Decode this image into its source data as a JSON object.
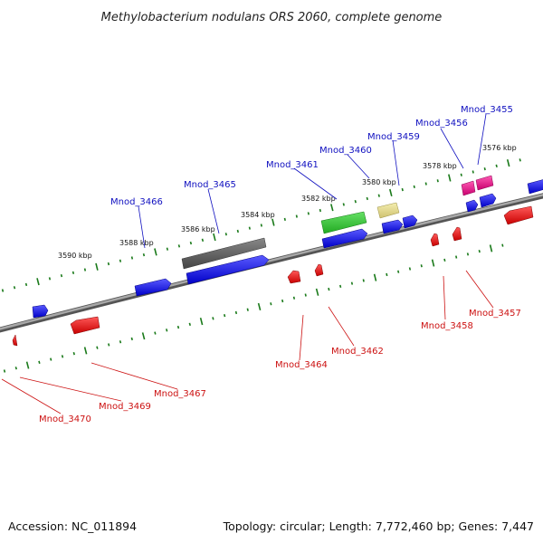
{
  "title": "Methylobacterium nodulans ORS 2060, complete genome",
  "footer": {
    "accession": "Accession: NC_011894",
    "summary": "Topology: circular; Length: 7,772,460 bp; Genes: 7,447"
  },
  "scale_labels": [
    "3590 kbp",
    "3588 kbp",
    "3586 kbp",
    "3584 kbp",
    "3582 kbp",
    "3580 kbp",
    "3578 kbp",
    "3576 kbp"
  ],
  "top_genes": [
    "Mnod_3466",
    "Mnod_3465",
    "Mnod_3461",
    "Mnod_3460",
    "Mnod_3459",
    "Mnod_3456",
    "Mnod_3455"
  ],
  "bottom_genes": [
    "Mnod_3470",
    "Mnod_3469",
    "Mnod_3467",
    "Mnod_3464",
    "Mnod_3462",
    "Mnod_3458",
    "Mnod_3457"
  ],
  "colors": {
    "forward": "#1a1ae6",
    "reverse": "#e61a1a",
    "rna": "#666666",
    "green": "#33cc33",
    "yellow": "#e6dc88",
    "pink": "#e6198c",
    "backbone": "#8c8c8c",
    "ticks": "#1a7a1a",
    "label_top": "#1010c0",
    "label_bottom": "#cc1111"
  }
}
